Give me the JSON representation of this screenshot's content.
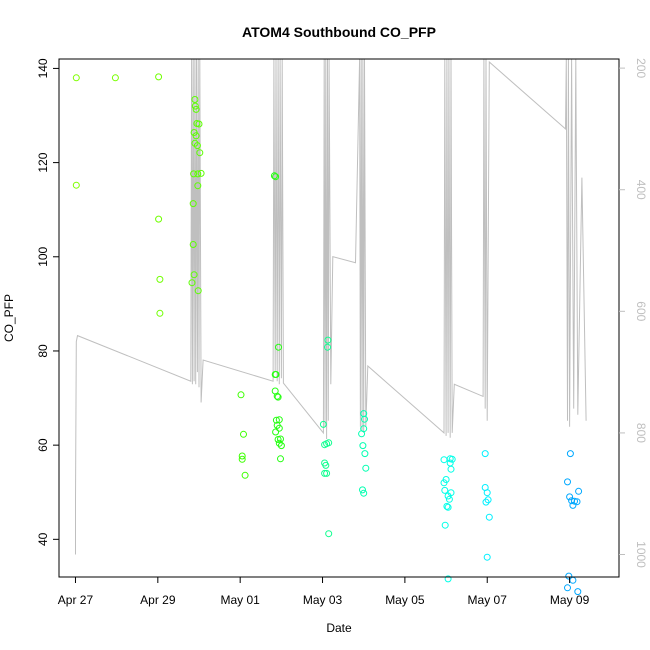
{
  "chart_data": {
    "type": "scatter",
    "title": "ATOM4 Southbound CO_PFP",
    "xlabel": "Date",
    "ylabel": "CO_PFP",
    "x_unit": "days since Apr 27",
    "xlim": [
      -0.4,
      13.2
    ],
    "ylim": [
      32,
      142
    ],
    "y_ticks": [
      40,
      60,
      80,
      100,
      120,
      140
    ],
    "x_ticks": [
      {
        "value": 0,
        "label": "Apr 27"
      },
      {
        "value": 2,
        "label": "Apr 29"
      },
      {
        "value": 4,
        "label": "May 01"
      },
      {
        "value": 6,
        "label": "May 03"
      },
      {
        "value": 8,
        "label": "May 05"
      },
      {
        "value": 10,
        "label": "May 07"
      },
      {
        "value": 12,
        "label": "May 09"
      }
    ],
    "right_axis": {
      "label_color": "#bfbfbf",
      "note": "pressure (reversed)",
      "ylim": [
        1037,
        185
      ],
      "ticks": [
        200,
        400,
        600,
        800,
        1000
      ]
    },
    "series": [
      {
        "name": "CO_PFP",
        "points": [
          {
            "x": 0.02,
            "y": 138,
            "color": "#7FFF00"
          },
          {
            "x": 0.02,
            "y": 115.2,
            "color": "#7FFF00"
          },
          {
            "x": 0.97,
            "y": 138,
            "color": "#78FF00"
          },
          {
            "x": 2.02,
            "y": 138.2,
            "color": "#70FF00"
          },
          {
            "x": 2.02,
            "y": 108,
            "color": "#70FF00"
          },
          {
            "x": 2.05,
            "y": 95.2,
            "color": "#70FF00"
          },
          {
            "x": 2.05,
            "y": 88,
            "color": "#70FF00"
          },
          {
            "x": 2.83,
            "y": 94.5,
            "color": "#5CFF00"
          },
          {
            "x": 2.86,
            "y": 102.6,
            "color": "#5CFF00"
          },
          {
            "x": 2.86,
            "y": 111.3,
            "color": "#5CFF00"
          },
          {
            "x": 2.87,
            "y": 117.6,
            "color": "#5CFF00"
          },
          {
            "x": 2.88,
            "y": 126.4,
            "color": "#5CFF00"
          },
          {
            "x": 2.9,
            "y": 124.1,
            "color": "#5CFF00"
          },
          {
            "x": 2.9,
            "y": 133.4,
            "color": "#5CFF00"
          },
          {
            "x": 2.91,
            "y": 132,
            "color": "#5CFF00"
          },
          {
            "x": 2.93,
            "y": 131.3,
            "color": "#5CFF00"
          },
          {
            "x": 2.93,
            "y": 125.7,
            "color": "#5CFF00"
          },
          {
            "x": 2.95,
            "y": 128.3,
            "color": "#5CFF00"
          },
          {
            "x": 2.96,
            "y": 123.6,
            "color": "#5CFF00"
          },
          {
            "x": 2.97,
            "y": 115.1,
            "color": "#5CFF00"
          },
          {
            "x": 2.97,
            "y": 117.6,
            "color": "#5CFF00"
          },
          {
            "x": 2.98,
            "y": 92.8,
            "color": "#5CFF00"
          },
          {
            "x": 3.0,
            "y": 128.2,
            "color": "#5CFF00"
          },
          {
            "x": 3.02,
            "y": 122.1,
            "color": "#5CFF00"
          },
          {
            "x": 2.88,
            "y": 96.2,
            "color": "#5CFF00"
          },
          {
            "x": 3.05,
            "y": 117.7,
            "color": "#5CFF00"
          },
          {
            "x": 4.02,
            "y": 70.7,
            "color": "#3CFF00"
          },
          {
            "x": 4.05,
            "y": 57.7,
            "color": "#3CFF00"
          },
          {
            "x": 4.05,
            "y": 57,
            "color": "#3CFF00"
          },
          {
            "x": 4.08,
            "y": 62.3,
            "color": "#3CFF00"
          },
          {
            "x": 4.12,
            "y": 53.6,
            "color": "#3CFF00"
          },
          {
            "x": 4.83,
            "y": 117.2,
            "color": "#24FF10"
          },
          {
            "x": 4.86,
            "y": 117,
            "color": "#24FF10"
          },
          {
            "x": 4.85,
            "y": 75,
            "color": "#24FF10"
          },
          {
            "x": 4.87,
            "y": 75,
            "color": "#24FF10"
          },
          {
            "x": 4.85,
            "y": 71.5,
            "color": "#24FF10"
          },
          {
            "x": 4.9,
            "y": 70.4,
            "color": "#24FF10"
          },
          {
            "x": 4.92,
            "y": 70.2,
            "color": "#24FF10"
          },
          {
            "x": 4.88,
            "y": 65.3,
            "color": "#24FF10"
          },
          {
            "x": 4.95,
            "y": 65.4,
            "color": "#24FF10"
          },
          {
            "x": 4.9,
            "y": 64.2,
            "color": "#24FF10"
          },
          {
            "x": 4.95,
            "y": 63.6,
            "color": "#24FF10"
          },
          {
            "x": 4.86,
            "y": 62.8,
            "color": "#24FF10"
          },
          {
            "x": 4.92,
            "y": 61.2,
            "color": "#24FF10"
          },
          {
            "x": 4.98,
            "y": 61.3,
            "color": "#24FF10"
          },
          {
            "x": 4.95,
            "y": 60.4,
            "color": "#24FF10"
          },
          {
            "x": 5.0,
            "y": 59.9,
            "color": "#24FF10"
          },
          {
            "x": 4.98,
            "y": 57.1,
            "color": "#24FF10"
          },
          {
            "x": 4.93,
            "y": 80.8,
            "color": "#24FF10"
          },
          {
            "x": 6.02,
            "y": 64.4,
            "color": "#10FF90"
          },
          {
            "x": 6.05,
            "y": 60.1,
            "color": "#10FF90"
          },
          {
            "x": 6.1,
            "y": 60.3,
            "color": "#10FF90"
          },
          {
            "x": 6.15,
            "y": 60.5,
            "color": "#10FF90"
          },
          {
            "x": 6.05,
            "y": 56.2,
            "color": "#10FF90"
          },
          {
            "x": 6.08,
            "y": 55.7,
            "color": "#10FF90"
          },
          {
            "x": 6.05,
            "y": 54,
            "color": "#10FF90"
          },
          {
            "x": 6.1,
            "y": 54,
            "color": "#10FF90"
          },
          {
            "x": 6.12,
            "y": 80.8,
            "color": "#10FF90"
          },
          {
            "x": 6.13,
            "y": 82.3,
            "color": "#10FF90"
          },
          {
            "x": 6.15,
            "y": 41.2,
            "color": "#10FF90"
          },
          {
            "x": 6.95,
            "y": 62.4,
            "color": "#00FFB0"
          },
          {
            "x": 7.0,
            "y": 63.5,
            "color": "#00FFB0"
          },
          {
            "x": 7.0,
            "y": 66.7,
            "color": "#00FFB0"
          },
          {
            "x": 7.02,
            "y": 65.5,
            "color": "#00FFB0"
          },
          {
            "x": 6.98,
            "y": 59.9,
            "color": "#00FFB0"
          },
          {
            "x": 7.03,
            "y": 58.2,
            "color": "#00FFB0"
          },
          {
            "x": 7.05,
            "y": 55.1,
            "color": "#00FFB0"
          },
          {
            "x": 6.97,
            "y": 50.5,
            "color": "#00FFB0"
          },
          {
            "x": 7.0,
            "y": 49.8,
            "color": "#00FFB0"
          },
          {
            "x": 8.95,
            "y": 56.9,
            "color": "#00FFE8"
          },
          {
            "x": 8.95,
            "y": 52,
            "color": "#00FFE8"
          },
          {
            "x": 9.0,
            "y": 52.7,
            "color": "#00FFE8"
          },
          {
            "x": 8.97,
            "y": 50.4,
            "color": "#00FFE8"
          },
          {
            "x": 9.05,
            "y": 49.2,
            "color": "#00FFE8"
          },
          {
            "x": 9.08,
            "y": 48.5,
            "color": "#00FFE8"
          },
          {
            "x": 9.02,
            "y": 47,
            "color": "#00FFE8"
          },
          {
            "x": 9.05,
            "y": 46.8,
            "color": "#00FFE8"
          },
          {
            "x": 8.98,
            "y": 43,
            "color": "#00FFE8"
          },
          {
            "x": 9.12,
            "y": 49.9,
            "color": "#00FFE8"
          },
          {
            "x": 9.1,
            "y": 57.1,
            "color": "#00FFE8"
          },
          {
            "x": 9.1,
            "y": 56.2,
            "color": "#00FFE8"
          },
          {
            "x": 9.15,
            "y": 57,
            "color": "#00FFE8"
          },
          {
            "x": 9.12,
            "y": 54.9,
            "color": "#00FFE8"
          },
          {
            "x": 9.05,
            "y": 31.6,
            "color": "#00FFE8"
          },
          {
            "x": 9.95,
            "y": 58.2,
            "color": "#00F0FF"
          },
          {
            "x": 9.95,
            "y": 51,
            "color": "#00F0FF"
          },
          {
            "x": 10.0,
            "y": 49.9,
            "color": "#00F0FF"
          },
          {
            "x": 10.02,
            "y": 48.4,
            "color": "#00F0FF"
          },
          {
            "x": 9.97,
            "y": 47.9,
            "color": "#00F0FF"
          },
          {
            "x": 10.05,
            "y": 44.7,
            "color": "#00F0FF"
          },
          {
            "x": 10.0,
            "y": 36.2,
            "color": "#00F0FF"
          },
          {
            "x": 11.95,
            "y": 52.2,
            "color": "#00A8FF"
          },
          {
            "x": 12.02,
            "y": 58.2,
            "color": "#00A8FF"
          },
          {
            "x": 12.0,
            "y": 49,
            "color": "#00A8FF"
          },
          {
            "x": 12.05,
            "y": 48.2,
            "color": "#00A8FF"
          },
          {
            "x": 12.08,
            "y": 47.2,
            "color": "#00A8FF"
          },
          {
            "x": 12.12,
            "y": 48.1,
            "color": "#00A8FF"
          },
          {
            "x": 12.18,
            "y": 48,
            "color": "#00A8FF"
          },
          {
            "x": 12.22,
            "y": 50.2,
            "color": "#00A8FF"
          },
          {
            "x": 11.98,
            "y": 32.2,
            "color": "#00A8FF"
          },
          {
            "x": 12.08,
            "y": 31.3,
            "color": "#00A8FF"
          },
          {
            "x": 11.95,
            "y": 29.7,
            "color": "#00A8FF"
          },
          {
            "x": 12.2,
            "y": 28.9,
            "color": "#00A8FF"
          }
        ]
      },
      {
        "name": "pressure",
        "color": "#bfbfbf",
        "line": [
          [
            0.0,
            1000
          ],
          [
            0.0,
            910
          ],
          [
            0.02,
            650
          ],
          [
            0.05,
            640
          ],
          [
            2.8,
            715
          ],
          [
            2.82,
            185
          ],
          [
            2.84,
            720
          ],
          [
            2.86,
            185
          ],
          [
            2.88,
            715
          ],
          [
            2.9,
            185
          ],
          [
            2.92,
            720
          ],
          [
            2.94,
            185
          ],
          [
            2.96,
            700
          ],
          [
            2.98,
            185
          ],
          [
            3.0,
            725
          ],
          [
            3.02,
            185
          ],
          [
            3.05,
            750
          ],
          [
            3.1,
            680
          ],
          [
            4.8,
            715
          ],
          [
            4.82,
            185
          ],
          [
            4.85,
            700
          ],
          [
            4.87,
            185
          ],
          [
            4.9,
            715
          ],
          [
            4.92,
            185
          ],
          [
            4.95,
            720
          ],
          [
            4.97,
            185
          ],
          [
            5.0,
            710
          ],
          [
            5.02,
            185
          ],
          [
            5.05,
            718
          ],
          [
            6.02,
            800
          ],
          [
            6.04,
            185
          ],
          [
            6.06,
            790
          ],
          [
            6.08,
            185
          ],
          [
            6.1,
            810
          ],
          [
            6.12,
            185
          ],
          [
            6.14,
            780
          ],
          [
            6.16,
            185
          ],
          [
            6.2,
            720
          ],
          [
            6.25,
            510
          ],
          [
            6.8,
            520
          ],
          [
            6.9,
            185
          ],
          [
            6.92,
            790
          ],
          [
            6.94,
            185
          ],
          [
            6.96,
            795
          ],
          [
            6.98,
            185
          ],
          [
            7.0,
            800
          ],
          [
            7.02,
            185
          ],
          [
            7.05,
            790
          ],
          [
            7.1,
            690
          ],
          [
            8.95,
            800
          ],
          [
            8.97,
            185
          ],
          [
            9.0,
            805
          ],
          [
            9.02,
            185
          ],
          [
            9.05,
            800
          ],
          [
            9.07,
            185
          ],
          [
            9.1,
            808
          ],
          [
            9.12,
            185
          ],
          [
            9.15,
            800
          ],
          [
            9.2,
            720
          ],
          [
            9.9,
            740
          ],
          [
            9.92,
            185
          ],
          [
            9.95,
            760
          ],
          [
            9.97,
            185
          ],
          [
            10.0,
            780
          ],
          [
            10.05,
            190
          ],
          [
            11.9,
            300
          ],
          [
            11.92,
            185
          ],
          [
            11.95,
            780
          ],
          [
            11.97,
            185
          ],
          [
            12.0,
            790
          ],
          [
            12.05,
            185
          ],
          [
            12.1,
            760
          ],
          [
            12.15,
            185
          ],
          [
            12.2,
            770
          ],
          [
            12.3,
            380
          ],
          [
            12.4,
            780
          ]
        ]
      }
    ],
    "grid": false,
    "legend": "none"
  }
}
